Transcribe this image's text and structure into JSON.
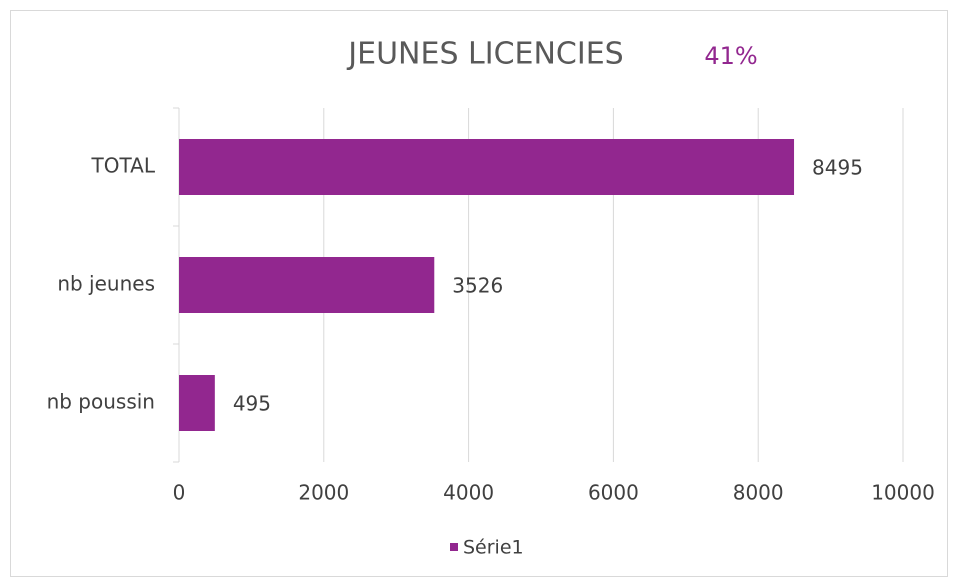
{
  "chart_data": {
    "type": "bar",
    "orientation": "horizontal",
    "title": "JEUNES LICENCIES",
    "annotation": "41%",
    "categories": [
      "TOTAL",
      "nb jeunes",
      "nb poussin"
    ],
    "series": [
      {
        "name": "Série1",
        "color": "#92278f",
        "values": [
          8495,
          3526,
          495
        ]
      }
    ],
    "xlim": [
      0,
      10000
    ],
    "xticks": [
      0,
      2000,
      4000,
      6000,
      8000,
      10000
    ],
    "grid": true,
    "legend": "bottom"
  }
}
